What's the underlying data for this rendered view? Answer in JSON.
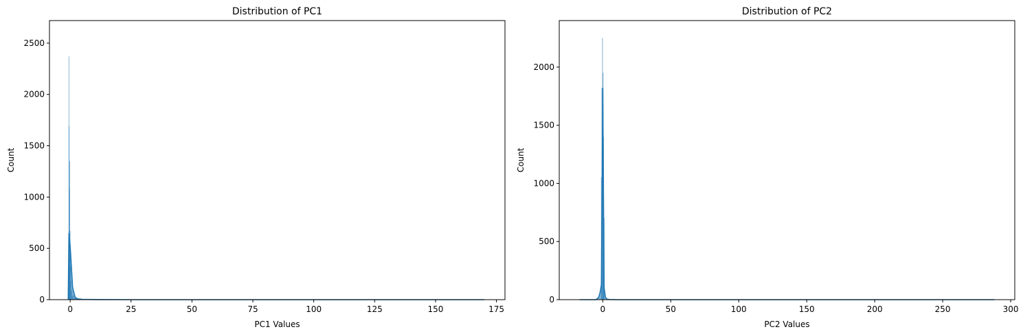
{
  "chart_data": [
    {
      "type": "histogram",
      "title": "Distribution of PC1",
      "xlabel": "PC1 Values",
      "ylabel": "Count",
      "xlim": [
        -8.5,
        178.5
      ],
      "ylim": [
        0,
        2720
      ],
      "xticks": [
        0,
        25,
        50,
        75,
        100,
        125,
        150,
        175
      ],
      "yticks": [
        0,
        500,
        1000,
        1500,
        2000,
        2500
      ],
      "grid": false,
      "legend": "none",
      "color": "#1f77b4",
      "bins": [
        {
          "x0": -0.6,
          "x1": -0.5,
          "count": 2370
        },
        {
          "x0": -0.5,
          "x1": -0.4,
          "count": 1690
        },
        {
          "x0": -0.4,
          "x1": -0.3,
          "count": 1080
        },
        {
          "x0": -0.3,
          "x1": -0.1,
          "count": 1350
        },
        {
          "x0": -0.1,
          "x1": 0.0,
          "count": 670
        },
        {
          "x0": 0.0,
          "x1": 0.2,
          "count": 330
        },
        {
          "x0": 0.2,
          "x1": 0.4,
          "count": 180
        },
        {
          "x0": 0.4,
          "x1": 0.8,
          "count": 90
        },
        {
          "x0": 0.8,
          "x1": 1.4,
          "count": 40
        },
        {
          "x0": 1.4,
          "x1": 2.5,
          "count": 15
        },
        {
          "x0": 2.5,
          "x1": 5.0,
          "count": 5
        }
      ],
      "kde": {
        "x": [
          -0.8,
          -0.5,
          0,
          1,
          2,
          3,
          5,
          10,
          25,
          50,
          75,
          100,
          125,
          150,
          170
        ],
        "y": [
          0,
          650,
          520,
          120,
          25,
          8,
          3,
          1,
          0,
          0,
          0,
          0,
          0,
          0,
          0
        ]
      }
    },
    {
      "type": "histogram",
      "title": "Distribution of PC2",
      "xlabel": "PC2 Values",
      "ylabel": "Count",
      "xlim": [
        -32,
        303
      ],
      "ylim": [
        0,
        2400
      ],
      "xticks": [
        0,
        50,
        100,
        150,
        200,
        250,
        300
      ],
      "yticks": [
        0,
        500,
        1000,
        1500,
        2000
      ],
      "grid": false,
      "legend": "none",
      "color": "#1f77b4",
      "bins": [
        {
          "x0": -1.2,
          "x1": -0.8,
          "count": 1050
        },
        {
          "x0": -0.8,
          "x1": -0.4,
          "count": 1820
        },
        {
          "x0": -0.4,
          "x1": 0.0,
          "count": 2250
        },
        {
          "x0": 0.0,
          "x1": 0.4,
          "count": 1950
        },
        {
          "x0": 0.4,
          "x1": 0.8,
          "count": 1400
        },
        {
          "x0": 0.8,
          "x1": 1.2,
          "count": 700
        }
      ],
      "kde": {
        "x": [
          -17,
          -10,
          -5,
          -3,
          -2,
          -1,
          -0.5,
          0,
          0.5,
          1,
          2,
          3,
          5,
          10,
          50,
          100,
          150,
          200,
          250,
          288
        ],
        "y": [
          0,
          0,
          0,
          20,
          60,
          130,
          900,
          1820,
          900,
          100,
          20,
          5,
          1,
          0,
          0,
          0,
          0,
          0,
          0,
          0
        ]
      }
    }
  ]
}
